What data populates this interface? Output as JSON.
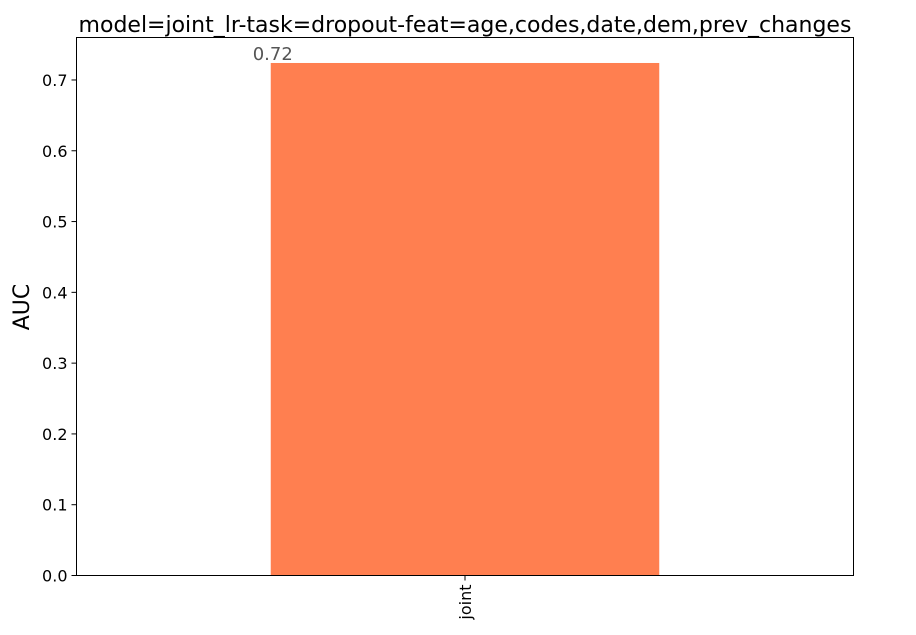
{
  "chart_data": {
    "type": "bar",
    "title": "model=joint_lr-task=dropout-feat=age,codes,date,dem,prev_changes",
    "xlabel": "",
    "ylabel": "AUC",
    "categories": [
      "joint"
    ],
    "values": [
      0.724
    ],
    "data_labels": [
      "0.72"
    ],
    "ylim": [
      0,
      0.76
    ],
    "yticks": [
      0.0,
      0.1,
      0.2,
      0.3,
      0.4,
      0.5,
      0.6,
      0.7
    ],
    "ytick_labels": [
      "0.0",
      "0.1",
      "0.2",
      "0.3",
      "0.4",
      "0.5",
      "0.6",
      "0.7"
    ],
    "grid": false,
    "bar_color": "#ff7f50",
    "legend": null
  }
}
